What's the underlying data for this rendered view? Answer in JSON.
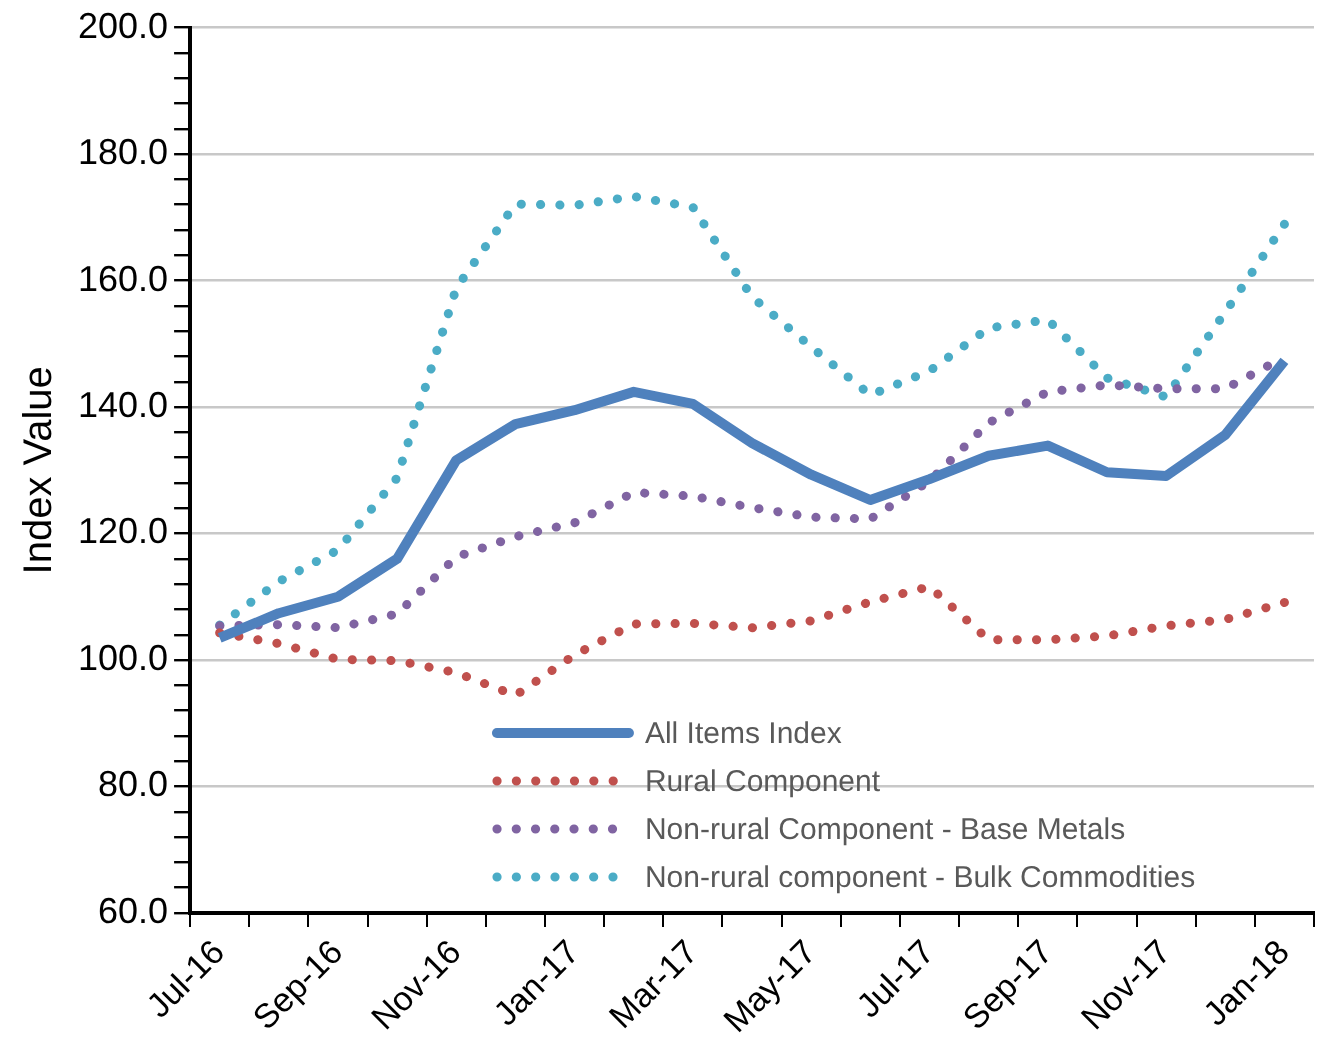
{
  "chart_data": {
    "type": "line",
    "ylabel": "Index Value",
    "categories": [
      "Jul-16",
      null,
      "Sep-16",
      null,
      "Nov-16",
      null,
      "Jan-17",
      null,
      "Mar-17",
      null,
      "May-17",
      null,
      "Jul-17",
      null,
      "Sep-17",
      null,
      "Nov-17",
      null,
      "Jan-18"
    ],
    "series": [
      {
        "name": "All Items Index",
        "color": "#4f81bd",
        "line_style": "solid",
        "marker": "none",
        "values": [
          103.5,
          107.4,
          110,
          116,
          131.6,
          137.3,
          139.5,
          142.4,
          140.5,
          134.3,
          129.3,
          125.3,
          128.6,
          132.3,
          133.9,
          129.7,
          129.1,
          135.6,
          147.3
        ]
      },
      {
        "name": "Rural Component",
        "color": "#c0504d",
        "line_style": "dotted",
        "marker": "none",
        "values": [
          104.3,
          102.6,
          100.1,
          99.9,
          98,
          94.4,
          100.8,
          105.7,
          105.8,
          105.1,
          106.2,
          109.2,
          111.6,
          103.2,
          103.2,
          103.8,
          105.4,
          106.4,
          109.1
        ]
      },
      {
        "name": "Non-rural Component - Base Metals",
        "color": "#8064a2",
        "line_style": "dotted",
        "marker": "none",
        "values": [
          105.4,
          105.6,
          105.1,
          107.3,
          116.3,
          119.5,
          121.7,
          126.5,
          125.9,
          124.1,
          122.6,
          122.3,
          128.3,
          137.5,
          142.4,
          143.5,
          142.9,
          142.9,
          147.9
        ]
      },
      {
        "name": "Non-rural component - Bulk Commodities",
        "color": "#4bacc6",
        "line_style": "dotted",
        "marker": "none",
        "values": [
          105.5,
          112.4,
          117.4,
          128.8,
          158.8,
          172.1,
          171.9,
          173.3,
          171.6,
          157.4,
          149.5,
          141.9,
          145.7,
          152.5,
          153.8,
          144.6,
          141.6,
          155,
          168.9
        ]
      }
    ],
    "ylim": [
      60,
      200
    ],
    "yticks": [
      {
        "value": 60,
        "label": "60.0"
      },
      {
        "value": 64,
        "label": null
      },
      {
        "value": 68,
        "label": null
      },
      {
        "value": 72,
        "label": null
      },
      {
        "value": 76,
        "label": null
      },
      {
        "value": 80,
        "label": "80.0"
      },
      {
        "value": 84,
        "label": null
      },
      {
        "value": 88,
        "label": null
      },
      {
        "value": 92,
        "label": null
      },
      {
        "value": 96,
        "label": null
      },
      {
        "value": 100,
        "label": "100.0"
      },
      {
        "value": 104,
        "label": null
      },
      {
        "value": 108,
        "label": null
      },
      {
        "value": 112,
        "label": null
      },
      {
        "value": 116,
        "label": null
      },
      {
        "value": 120,
        "label": "120.0"
      },
      {
        "value": 124,
        "label": null
      },
      {
        "value": 128,
        "label": null
      },
      {
        "value": 132,
        "label": null
      },
      {
        "value": 136,
        "label": null
      },
      {
        "value": 140,
        "label": "140.0"
      },
      {
        "value": 144,
        "label": null
      },
      {
        "value": 148,
        "label": null
      },
      {
        "value": 152,
        "label": null
      },
      {
        "value": 156,
        "label": null
      },
      {
        "value": 160,
        "label": "160.0"
      },
      {
        "value": 164,
        "label": null
      },
      {
        "value": 168,
        "label": null
      },
      {
        "value": 172,
        "label": null
      },
      {
        "value": 176,
        "label": null
      },
      {
        "value": 180,
        "label": "180.0"
      },
      {
        "value": 184,
        "label": null
      },
      {
        "value": 188,
        "label": null
      },
      {
        "value": 192,
        "label": null
      },
      {
        "value": 196,
        "label": null
      },
      {
        "value": 200,
        "label": "200.0"
      }
    ],
    "grid": "y",
    "legend": "bottom"
  }
}
